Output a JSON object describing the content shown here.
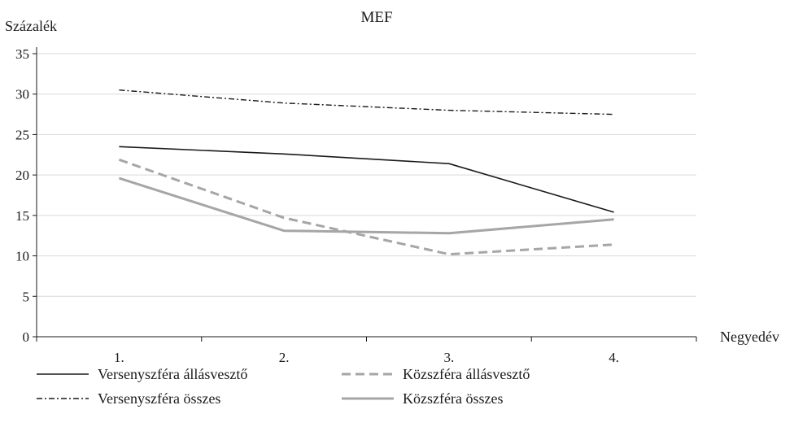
{
  "chart_data": {
    "type": "line",
    "title": "MEF",
    "ylabel": "Százalék",
    "xlabel": "Negyedév",
    "categories": [
      "1.",
      "2.",
      "3.",
      "4."
    ],
    "ylim": [
      0,
      35
    ],
    "yticks": [
      0,
      5,
      10,
      15,
      20,
      25,
      30,
      35
    ],
    "grid": true,
    "legend_position": "bottom",
    "series": [
      {
        "name": "Versenyszféra állásvesztő",
        "values": [
          23.5,
          22.6,
          21.4,
          15.4
        ],
        "color": "#1a1a1a",
        "style": "solid"
      },
      {
        "name": "Közszféra állásvesztő",
        "values": [
          21.9,
          14.7,
          10.2,
          11.4
        ],
        "color": "#a6a6a6",
        "style": "dashed"
      },
      {
        "name": "Versenyszféra összes",
        "values": [
          30.5,
          28.9,
          28.0,
          27.5
        ],
        "color": "#1a1a1a",
        "style": "dashdot"
      },
      {
        "name": "Közszféra összes",
        "values": [
          19.6,
          13.1,
          12.8,
          14.5
        ],
        "color": "#a6a6a6",
        "style": "solid-thick"
      }
    ]
  }
}
